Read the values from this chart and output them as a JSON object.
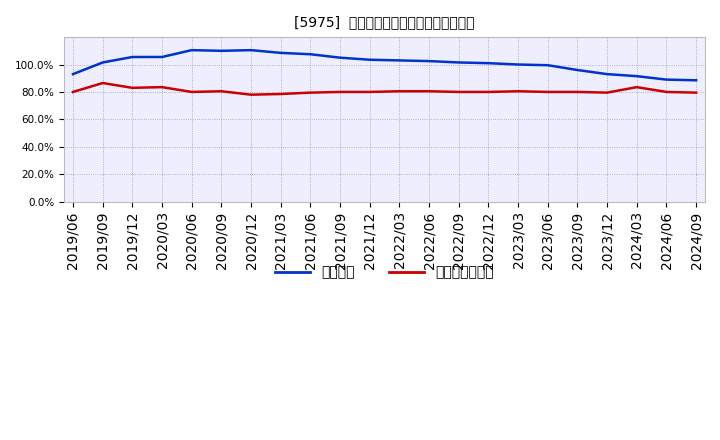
{
  "title": "[5975]  固定比率、固定長期適合率の推移",
  "x_labels": [
    "2019/06",
    "2019/09",
    "2019/12",
    "2020/03",
    "2020/06",
    "2020/09",
    "2020/12",
    "2021/03",
    "2021/06",
    "2021/09",
    "2021/12",
    "2022/03",
    "2022/06",
    "2022/09",
    "2022/12",
    "2023/03",
    "2023/06",
    "2023/09",
    "2023/12",
    "2024/03",
    "2024/06",
    "2024/09"
  ],
  "fixed_ratio": [
    93.0,
    101.5,
    105.5,
    105.5,
    110.5,
    110.0,
    110.5,
    108.5,
    107.5,
    105.0,
    103.5,
    103.0,
    102.5,
    101.5,
    101.0,
    100.0,
    99.5,
    96.0,
    93.0,
    91.5,
    89.0,
    88.5
  ],
  "fixed_long_ratio": [
    80.0,
    86.5,
    83.0,
    83.5,
    80.0,
    80.5,
    78.0,
    78.5,
    79.5,
    80.0,
    80.0,
    80.5,
    80.5,
    80.0,
    80.0,
    80.5,
    80.0,
    80.0,
    79.5,
    83.5,
    80.0,
    79.5
  ],
  "line1_color": "#0033CC",
  "line2_color": "#CC0000",
  "line1_label": "固定比率",
  "line2_label": "固定長期適合率",
  "ylim": [
    0,
    120
  ],
  "yticks": [
    0,
    20,
    40,
    60,
    80,
    100
  ],
  "ytick_labels": [
    "0.0%",
    "20.0%",
    "40.0%",
    "60.0%",
    "80.0%",
    "100.0%"
  ],
  "bg_color": "#FFFFFF",
  "plot_bg_color": "#EEEEFF",
  "grid_color": "#9999BB",
  "title_fontsize": 12,
  "tick_fontsize": 7.5,
  "legend_fontsize": 10
}
